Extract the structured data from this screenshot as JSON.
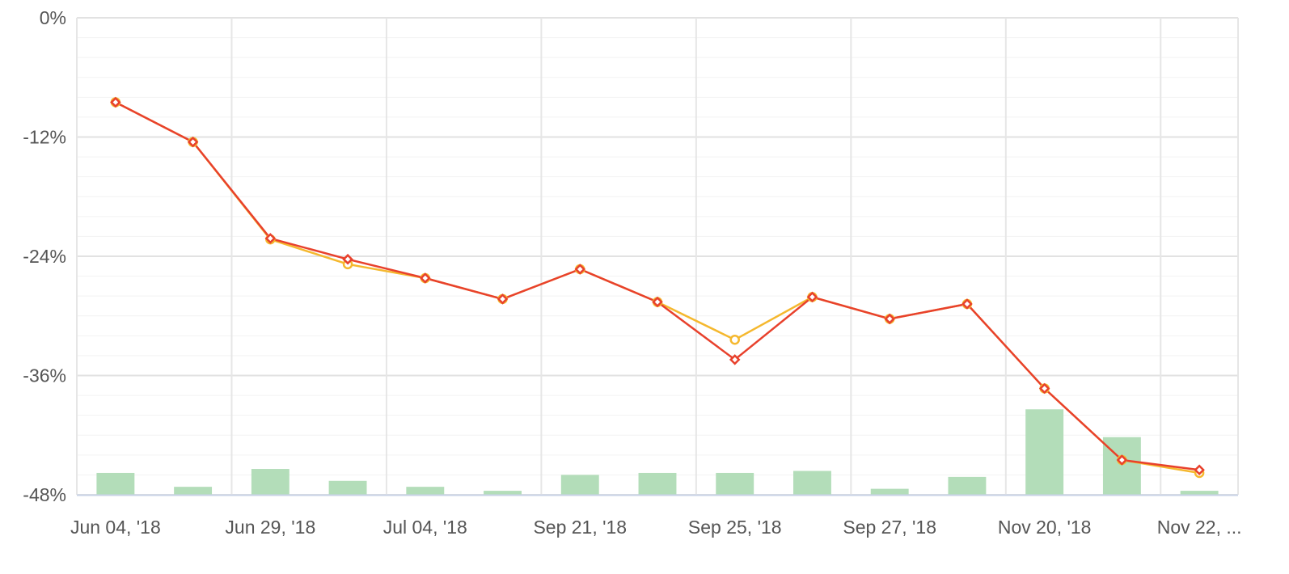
{
  "chart_data": {
    "type": "line",
    "categories": [
      "Jun 04, '18",
      "",
      "Jun 29, '18",
      "",
      "Jul 04, '18",
      "",
      "Sep 21, '18",
      "",
      "Sep 25, '18",
      "",
      "Sep 27, '18",
      "",
      "Nov 20, '18",
      "",
      "Nov 22, ..."
    ],
    "x_tick_labels": [
      "Jun 04, '18",
      "Jun 29, '18",
      "Jul 04, '18",
      "Sep 21, '18",
      "Sep 25, '18",
      "Sep 27, '18",
      "Nov 20, '18",
      "Nov 22, ..."
    ],
    "y_tick_labels": [
      "0%",
      "-12%",
      "-24%",
      "-36%",
      "-48%"
    ],
    "ylim": [
      -48,
      0
    ],
    "y_ticks": [
      0,
      -12,
      -24,
      -36,
      -48
    ],
    "grid": true,
    "series": [
      {
        "type": "line",
        "color": "#f5b82e",
        "marker": "circle",
        "values": [
          -8.5,
          -12.5,
          -22.3,
          -24.8,
          -26.2,
          -28.3,
          -25.3,
          -28.6,
          -32.4,
          -28.1,
          -30.3,
          -28.8,
          -37.3,
          -44.5,
          -45.8
        ]
      },
      {
        "type": "line",
        "color": "#e8412c",
        "marker": "diamond",
        "values": [
          -8.5,
          -12.5,
          -22.2,
          -24.3,
          -26.2,
          -28.3,
          -25.3,
          -28.6,
          -34.4,
          -28.1,
          -30.3,
          -28.8,
          -37.3,
          -44.5,
          -45.5
        ]
      },
      {
        "type": "bar",
        "color": "#b3ddb9",
        "values": [
          -45.8,
          -47.2,
          -45.4,
          -46.6,
          -47.2,
          -47.6,
          -46.0,
          -45.8,
          -45.8,
          -45.6,
          -47.4,
          -46.2,
          -39.4,
          -42.2,
          -47.6
        ]
      }
    ]
  }
}
